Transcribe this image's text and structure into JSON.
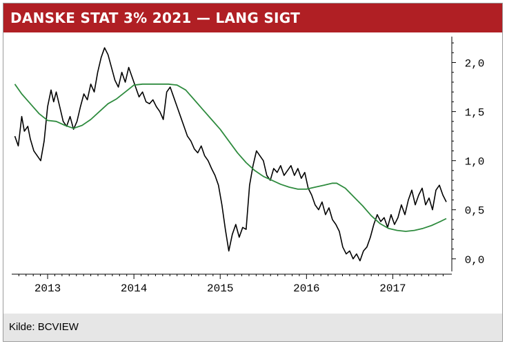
{
  "header": {
    "title": "DANSKE STAT 3% 2021 — LANG SIGT"
  },
  "footer": {
    "source": "Kilde: BCVIEW"
  },
  "colors": {
    "title_bg": "#b01f24",
    "price": "#000000",
    "average": "#2e8b3e",
    "footer_bg": "#e6e6e6"
  },
  "chart_data": {
    "type": "line",
    "title": "DANSKE STAT 3% 2021 — LANG SIGT",
    "xlabel": "",
    "ylabel": "",
    "x_ticks": [
      "2013",
      "2014",
      "2015",
      "2016",
      "2017"
    ],
    "y_ticks": [
      "0,0",
      "0,5",
      "1,0",
      "1,5",
      "2,0"
    ],
    "xlim": [
      2012.6,
      2017.62
    ],
    "ylim": [
      -0.1,
      2.25
    ],
    "y_axis_side": "right",
    "grid": false,
    "legend": "none",
    "series": [
      {
        "color": "#000000",
        "points": [
          [
            2012.62,
            1.25
          ],
          [
            2012.66,
            1.15
          ],
          [
            2012.7,
            1.45
          ],
          [
            2012.73,
            1.3
          ],
          [
            2012.77,
            1.35
          ],
          [
            2012.8,
            1.22
          ],
          [
            2012.84,
            1.1
          ],
          [
            2012.88,
            1.05
          ],
          [
            2012.92,
            1.0
          ],
          [
            2012.96,
            1.2
          ],
          [
            2013.0,
            1.55
          ],
          [
            2013.04,
            1.72
          ],
          [
            2013.07,
            1.6
          ],
          [
            2013.1,
            1.7
          ],
          [
            2013.14,
            1.55
          ],
          [
            2013.18,
            1.4
          ],
          [
            2013.22,
            1.35
          ],
          [
            2013.26,
            1.45
          ],
          [
            2013.3,
            1.32
          ],
          [
            2013.34,
            1.4
          ],
          [
            2013.38,
            1.55
          ],
          [
            2013.42,
            1.68
          ],
          [
            2013.46,
            1.62
          ],
          [
            2013.5,
            1.78
          ],
          [
            2013.54,
            1.7
          ],
          [
            2013.58,
            1.9
          ],
          [
            2013.62,
            2.05
          ],
          [
            2013.66,
            2.15
          ],
          [
            2013.7,
            2.08
          ],
          [
            2013.74,
            1.95
          ],
          [
            2013.78,
            1.82
          ],
          [
            2013.82,
            1.75
          ],
          [
            2013.86,
            1.9
          ],
          [
            2013.9,
            1.8
          ],
          [
            2013.94,
            1.95
          ],
          [
            2013.98,
            1.85
          ],
          [
            2014.02,
            1.75
          ],
          [
            2014.06,
            1.65
          ],
          [
            2014.1,
            1.7
          ],
          [
            2014.14,
            1.6
          ],
          [
            2014.18,
            1.58
          ],
          [
            2014.22,
            1.62
          ],
          [
            2014.26,
            1.55
          ],
          [
            2014.3,
            1.5
          ],
          [
            2014.34,
            1.42
          ],
          [
            2014.38,
            1.7
          ],
          [
            2014.42,
            1.75
          ],
          [
            2014.46,
            1.65
          ],
          [
            2014.5,
            1.55
          ],
          [
            2014.54,
            1.45
          ],
          [
            2014.58,
            1.35
          ],
          [
            2014.62,
            1.25
          ],
          [
            2014.66,
            1.2
          ],
          [
            2014.7,
            1.12
          ],
          [
            2014.74,
            1.08
          ],
          [
            2014.78,
            1.15
          ],
          [
            2014.82,
            1.05
          ],
          [
            2014.86,
            1.0
          ],
          [
            2014.9,
            0.92
          ],
          [
            2014.94,
            0.85
          ],
          [
            2014.98,
            0.75
          ],
          [
            2015.02,
            0.55
          ],
          [
            2015.06,
            0.3
          ],
          [
            2015.1,
            0.08
          ],
          [
            2015.14,
            0.25
          ],
          [
            2015.18,
            0.35
          ],
          [
            2015.22,
            0.22
          ],
          [
            2015.26,
            0.32
          ],
          [
            2015.3,
            0.3
          ],
          [
            2015.34,
            0.75
          ],
          [
            2015.38,
            0.95
          ],
          [
            2015.42,
            1.1
          ],
          [
            2015.46,
            1.05
          ],
          [
            2015.5,
            1.0
          ],
          [
            2015.54,
            0.85
          ],
          [
            2015.58,
            0.8
          ],
          [
            2015.62,
            0.92
          ],
          [
            2015.66,
            0.88
          ],
          [
            2015.7,
            0.95
          ],
          [
            2015.74,
            0.85
          ],
          [
            2015.78,
            0.9
          ],
          [
            2015.82,
            0.95
          ],
          [
            2015.86,
            0.85
          ],
          [
            2015.9,
            0.92
          ],
          [
            2015.94,
            0.82
          ],
          [
            2015.98,
            0.88
          ],
          [
            2016.02,
            0.72
          ],
          [
            2016.06,
            0.65
          ],
          [
            2016.1,
            0.55
          ],
          [
            2016.14,
            0.5
          ],
          [
            2016.18,
            0.58
          ],
          [
            2016.22,
            0.45
          ],
          [
            2016.26,
            0.52
          ],
          [
            2016.3,
            0.4
          ],
          [
            2016.34,
            0.35
          ],
          [
            2016.38,
            0.28
          ],
          [
            2016.42,
            0.12
          ],
          [
            2016.46,
            0.05
          ],
          [
            2016.5,
            0.08
          ],
          [
            2016.54,
            0.0
          ],
          [
            2016.58,
            0.05
          ],
          [
            2016.62,
            -0.02
          ],
          [
            2016.66,
            0.08
          ],
          [
            2016.7,
            0.12
          ],
          [
            2016.74,
            0.22
          ],
          [
            2016.78,
            0.35
          ],
          [
            2016.82,
            0.45
          ],
          [
            2016.86,
            0.38
          ],
          [
            2016.9,
            0.42
          ],
          [
            2016.94,
            0.32
          ],
          [
            2016.98,
            0.45
          ],
          [
            2017.02,
            0.35
          ],
          [
            2017.06,
            0.42
          ],
          [
            2017.1,
            0.55
          ],
          [
            2017.14,
            0.45
          ],
          [
            2017.18,
            0.6
          ],
          [
            2017.22,
            0.7
          ],
          [
            2017.26,
            0.55
          ],
          [
            2017.3,
            0.65
          ],
          [
            2017.34,
            0.72
          ],
          [
            2017.38,
            0.55
          ],
          [
            2017.42,
            0.62
          ],
          [
            2017.46,
            0.5
          ],
          [
            2017.5,
            0.7
          ],
          [
            2017.54,
            0.75
          ],
          [
            2017.58,
            0.65
          ],
          [
            2017.62,
            0.58
          ]
        ]
      },
      {
        "color": "#2e8b3e",
        "points": [
          [
            2012.62,
            1.78
          ],
          [
            2012.7,
            1.68
          ],
          [
            2012.8,
            1.58
          ],
          [
            2012.9,
            1.48
          ],
          [
            2013.0,
            1.41
          ],
          [
            2013.1,
            1.4
          ],
          [
            2013.2,
            1.36
          ],
          [
            2013.3,
            1.33
          ],
          [
            2013.4,
            1.36
          ],
          [
            2013.5,
            1.42
          ],
          [
            2013.6,
            1.5
          ],
          [
            2013.7,
            1.58
          ],
          [
            2013.8,
            1.63
          ],
          [
            2013.9,
            1.7
          ],
          [
            2014.0,
            1.77
          ],
          [
            2014.1,
            1.78
          ],
          [
            2014.2,
            1.78
          ],
          [
            2014.3,
            1.78
          ],
          [
            2014.4,
            1.78
          ],
          [
            2014.5,
            1.77
          ],
          [
            2014.6,
            1.72
          ],
          [
            2014.7,
            1.62
          ],
          [
            2014.8,
            1.52
          ],
          [
            2014.9,
            1.42
          ],
          [
            2015.0,
            1.32
          ],
          [
            2015.1,
            1.2
          ],
          [
            2015.2,
            1.08
          ],
          [
            2015.3,
            0.98
          ],
          [
            2015.4,
            0.9
          ],
          [
            2015.5,
            0.84
          ],
          [
            2015.6,
            0.8
          ],
          [
            2015.7,
            0.76
          ],
          [
            2015.8,
            0.73
          ],
          [
            2015.9,
            0.71
          ],
          [
            2016.0,
            0.71
          ],
          [
            2016.1,
            0.73
          ],
          [
            2016.2,
            0.75
          ],
          [
            2016.3,
            0.77
          ],
          [
            2016.35,
            0.77
          ],
          [
            2016.45,
            0.72
          ],
          [
            2016.55,
            0.63
          ],
          [
            2016.65,
            0.54
          ],
          [
            2016.75,
            0.44
          ],
          [
            2016.85,
            0.36
          ],
          [
            2016.95,
            0.31
          ],
          [
            2017.05,
            0.29
          ],
          [
            2017.15,
            0.28
          ],
          [
            2017.25,
            0.29
          ],
          [
            2017.35,
            0.31
          ],
          [
            2017.45,
            0.34
          ],
          [
            2017.55,
            0.38
          ],
          [
            2017.62,
            0.41
          ]
        ]
      }
    ]
  }
}
